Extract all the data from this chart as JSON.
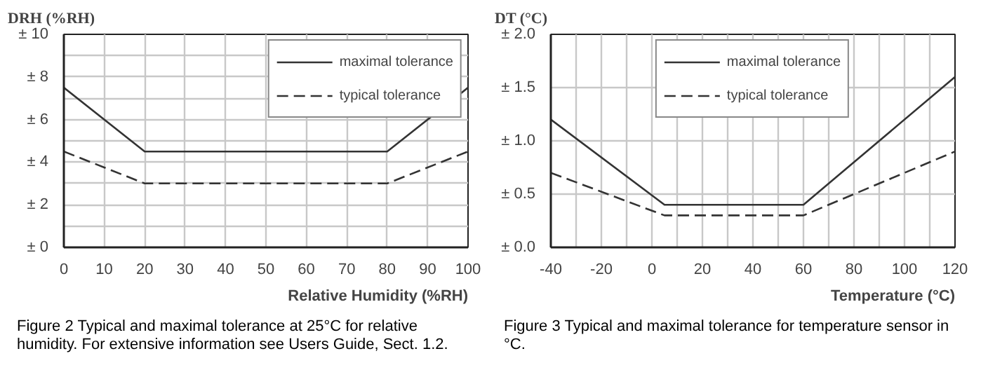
{
  "chart_data": [
    {
      "type": "line",
      "ylabel": "DRH (%RH)",
      "xlabel": "Relative Humidity (%RH)",
      "annotations": [
        "Figure 2  Typical and maximal tolerance at 25°C for relative humidity. For extensive information see Users Guide, Sect. 1.2."
      ],
      "series": [
        {
          "name": "maximal tolerance",
          "color": "#333333",
          "line_style": "solid",
          "x": [
            0,
            20,
            80,
            100
          ],
          "values": [
            7.5,
            4.5,
            4.5,
            7.5
          ]
        },
        {
          "name": "typical tolerance",
          "color": "#333333",
          "line_style": "dashed",
          "x": [
            0,
            20,
            80,
            100
          ],
          "values": [
            4.5,
            3,
            3,
            4.5
          ]
        }
      ],
      "xlim": [
        0,
        100
      ],
      "xticks": [
        0,
        10,
        20,
        30,
        40,
        50,
        60,
        70,
        80,
        90,
        100
      ],
      "ylim": [
        0,
        10
      ],
      "yticks": [
        {
          "value": 0,
          "label": "± 0"
        },
        {
          "value": 1,
          "label": null
        },
        {
          "value": 2,
          "label": "± 2"
        },
        {
          "value": 3,
          "label": null
        },
        {
          "value": 4,
          "label": "± 4"
        },
        {
          "value": 5,
          "label": null
        },
        {
          "value": 6,
          "label": "± 6"
        },
        {
          "value": 7,
          "label": null
        },
        {
          "value": 8,
          "label": "± 8"
        },
        {
          "value": 9,
          "label": null
        },
        {
          "value": 10,
          "label": "± 10"
        }
      ],
      "grid": true,
      "legend": "top right",
      "marker": "none"
    },
    {
      "type": "line",
      "ylabel": "DT (°C)",
      "xlabel": "Temperature (°C)",
      "annotations": [
        "Figure 3  Typical and maximal tolerance for temperature sensor in °C."
      ],
      "series": [
        {
          "name": "maximal tolerance",
          "color": "#333333",
          "line_style": "solid",
          "x": [
            -40,
            5,
            60,
            120
          ],
          "values": [
            1.2,
            0.4,
            0.4,
            1.6
          ]
        },
        {
          "name": "typical tolerance",
          "color": "#333333",
          "line_style": "dashed",
          "x": [
            -40,
            5,
            60,
            120
          ],
          "values": [
            0.7,
            0.3,
            0.3,
            0.9
          ]
        }
      ],
      "xlim": [
        -40,
        120
      ],
      "xticks": [
        -40,
        {
          "value": -30,
          "label": null
        },
        -20,
        {
          "value": -10,
          "label": null
        },
        0,
        {
          "value": 10,
          "label": null
        },
        20,
        {
          "value": 30,
          "label": null
        },
        40,
        {
          "value": 50,
          "label": null
        },
        60,
        {
          "value": 70,
          "label": null
        },
        80,
        {
          "value": 90,
          "label": null
        },
        100,
        {
          "value": 110,
          "label": null
        },
        120
      ],
      "ylim": [
        0,
        2
      ],
      "yticks": [
        {
          "value": 0,
          "label": "± 0.0"
        },
        {
          "value": 0.5,
          "label": "± 0.5"
        },
        {
          "value": 1,
          "label": "± 1.0"
        },
        {
          "value": 1.5,
          "label": "± 1.5"
        },
        {
          "value": 2,
          "label": "± 2.0"
        }
      ],
      "grid": true,
      "legend": "top",
      "marker": "none"
    }
  ]
}
